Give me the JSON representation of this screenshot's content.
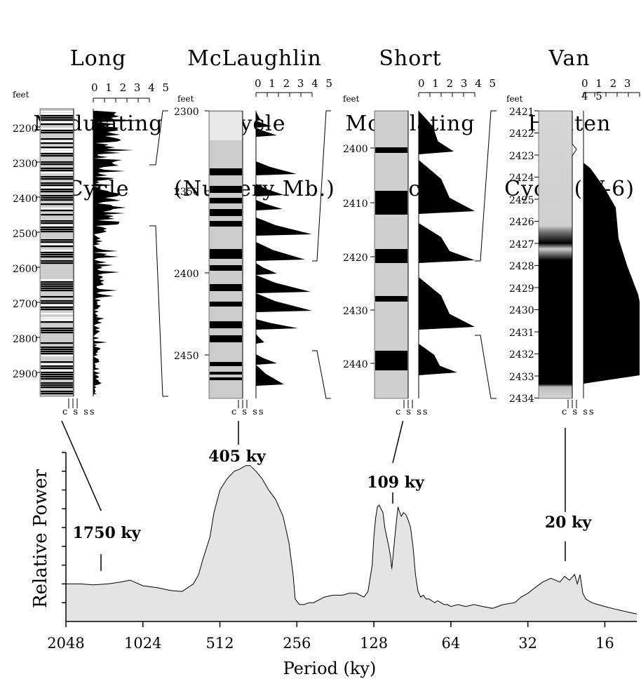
{
  "panels": [
    {
      "title_lines": [
        "Long",
        "Modulating",
        "Cycle"
      ],
      "unit": "feet",
      "depth_ticks": [
        "2200",
        "2300",
        "2400",
        "2500",
        "2600",
        "2700",
        "2800",
        "2900"
      ],
      "scale_label": "0 1 2 3 4 5",
      "lith_labels": "c s ss"
    },
    {
      "title_lines": [
        "McLaughlin",
        "Cycle",
        "(Nursery Mb.)"
      ],
      "unit": "feet",
      "depth_ticks": [
        "2300",
        "2350",
        "2400",
        "2450"
      ],
      "scale_label": "0 1 2 3 4 5",
      "lith_labels": "c s ss"
    },
    {
      "title_lines": [
        "Short",
        "Modulating",
        "Cycle"
      ],
      "unit": "feet",
      "depth_ticks": [
        "2400",
        "2410",
        "2420",
        "2430",
        "2440"
      ],
      "scale_label": "0 1 2 3 4 5",
      "lith_labels": "c s ss"
    },
    {
      "title_lines": [
        "Van",
        "Houten",
        "Cycle (W-6)"
      ],
      "unit": "feet",
      "depth_ticks": [
        "2421",
        "2422",
        "2423",
        "2424",
        "2425",
        "2426",
        "2427",
        "2428",
        "2429",
        "2430",
        "2431",
        "2432",
        "2433",
        "2434"
      ],
      "scale_label": "0 1 2 3 4 5",
      "lith_labels": "c s ss"
    }
  ],
  "chart_data": {
    "type": "area",
    "xlabel": "Period (ky)",
    "ylabel": "Relative Power",
    "x_scale": "log2",
    "x_tick_labels": [
      "2048",
      "1024",
      "512",
      "256",
      "128",
      "64",
      "32",
      "16"
    ],
    "x_ticks": [
      2048,
      1024,
      512,
      256,
      128,
      64,
      32,
      16
    ],
    "xlim": [
      2048,
      12
    ],
    "ylim": [
      0,
      9
    ],
    "grid": false,
    "fill_color": "#e4e4e4",
    "annotations": [
      {
        "label": "1750 ky",
        "period": 1750
      },
      {
        "label": "405 ky",
        "period": 405
      },
      {
        "label": "109 ky",
        "period": 109
      },
      {
        "label": "20 ky",
        "period": 20
      }
    ],
    "x": [
      2048,
      1800,
      1600,
      1400,
      1250,
      1150,
      1024,
      900,
      800,
      720,
      650,
      620,
      600,
      560,
      540,
      512,
      480,
      450,
      430,
      405,
      390,
      370,
      350,
      330,
      310,
      290,
      275,
      265,
      260,
      250,
      240,
      230,
      220,
      200,
      185,
      170,
      160,
      150,
      140,
      135,
      130,
      128,
      126,
      124,
      122,
      120,
      118,
      116,
      114,
      112,
      110,
      109,
      108,
      106,
      104,
      103,
      102,
      100,
      98,
      96,
      94,
      92,
      90,
      88,
      86,
      84,
      82,
      80,
      78,
      76,
      74,
      72,
      70,
      68,
      66,
      64,
      60,
      56,
      52,
      48,
      44,
      40,
      36,
      34,
      32,
      30,
      28,
      26,
      25,
      24,
      23,
      22,
      21,
      20.5,
      20,
      19.5,
      19,
      18,
      17,
      16,
      15,
      14,
      13,
      12
    ],
    "y": [
      2.0,
      2.0,
      1.95,
      2.0,
      2.1,
      2.2,
      1.9,
      1.8,
      1.65,
      1.6,
      2.0,
      2.5,
      3.2,
      4.5,
      5.8,
      7.0,
      7.6,
      8.0,
      8.1,
      8.3,
      8.3,
      8.0,
      7.6,
      7.0,
      6.5,
      5.6,
      4.2,
      2.5,
      1.2,
      0.9,
      0.9,
      1.0,
      1.0,
      1.3,
      1.4,
      1.4,
      1.5,
      1.5,
      1.3,
      1.6,
      3.0,
      4.5,
      5.5,
      6.1,
      6.2,
      6.0,
      5.8,
      5.0,
      4.5,
      4.0,
      3.4,
      2.8,
      3.3,
      4.5,
      5.6,
      6.1,
      5.9,
      5.6,
      5.8,
      5.7,
      5.4,
      5.0,
      4.0,
      2.5,
      1.6,
      1.3,
      1.4,
      1.2,
      1.2,
      1.1,
      1.0,
      1.1,
      1.0,
      0.9,
      0.9,
      0.8,
      0.9,
      0.8,
      0.9,
      0.8,
      0.7,
      0.9,
      1.0,
      1.3,
      1.5,
      1.8,
      2.1,
      2.3,
      2.2,
      2.1,
      2.4,
      2.2,
      2.5,
      2.0,
      2.5,
      1.5,
      1.2,
      1.0,
      0.9,
      0.8,
      0.7,
      0.6,
      0.5,
      0.4
    ]
  }
}
